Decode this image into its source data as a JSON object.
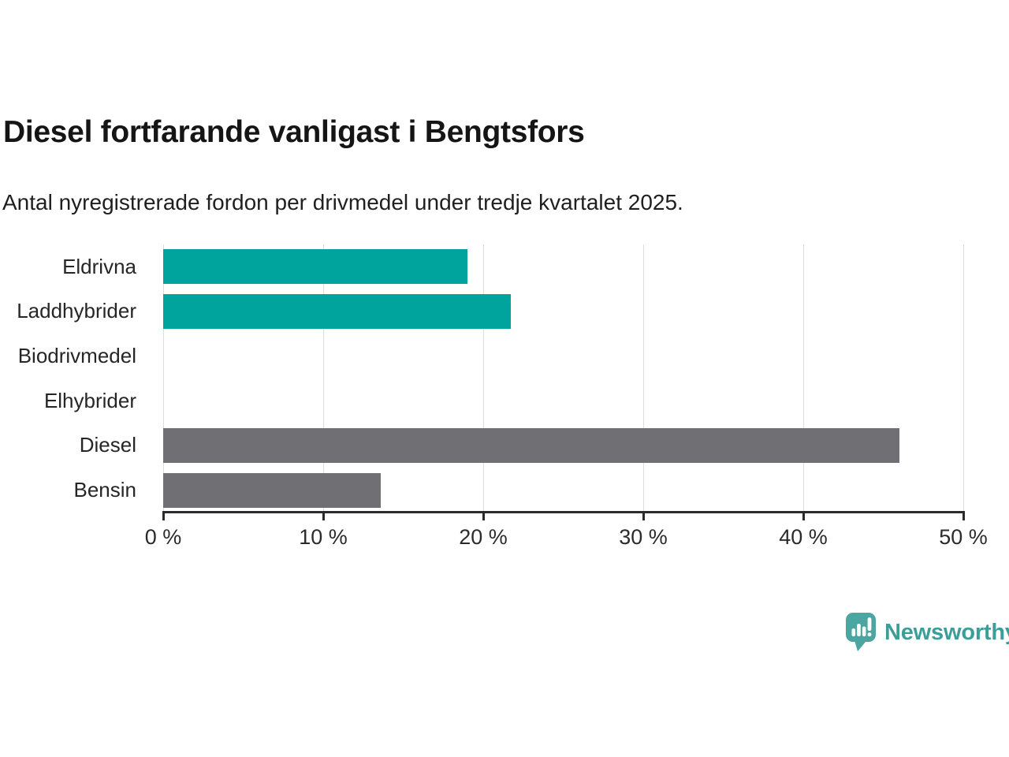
{
  "chart_data": {
    "type": "bar",
    "orientation": "horizontal",
    "title": "Diesel fortfarande vanligast i Bengtsfors",
    "subtitle": "Antal nyregistrerade fordon per drivmedel under tredje kvartalet 2025.",
    "categories": [
      "Eldrivna",
      "Laddhybrider",
      "Biodrivmedel",
      "Elhybrider",
      "Diesel",
      "Bensin"
    ],
    "values": [
      19,
      21.7,
      0,
      0,
      46,
      13.6
    ],
    "unit": "%",
    "bar_colors": [
      "#00a49c",
      "#00a49c",
      "#00a49c",
      "#00a49c",
      "#6f6f74",
      "#6f6f74"
    ],
    "xlim": [
      0,
      50
    ],
    "x_ticks": [
      {
        "value": 0,
        "label": "0 %"
      },
      {
        "value": 10,
        "label": "10 %"
      },
      {
        "value": 20,
        "label": "20 %"
      },
      {
        "value": 30,
        "label": "30 %"
      },
      {
        "value": 40,
        "label": "40 %"
      },
      {
        "value": 50,
        "label": "50 %"
      }
    ],
    "grid": "vertical",
    "legend": "none"
  },
  "branding": {
    "logo_text": "Newsworthy",
    "logo_icon": "newsworthy-chart-speech-bubble-icon",
    "logo_text_color": "#3b9e99",
    "logo_icon_color": "#4ba5a0"
  },
  "colors": {
    "teal": "#00a49c",
    "gray": "#6f6f74",
    "axis": "#2b2b2b",
    "gridline": "#dcdcdc",
    "background": "#ffffff"
  }
}
